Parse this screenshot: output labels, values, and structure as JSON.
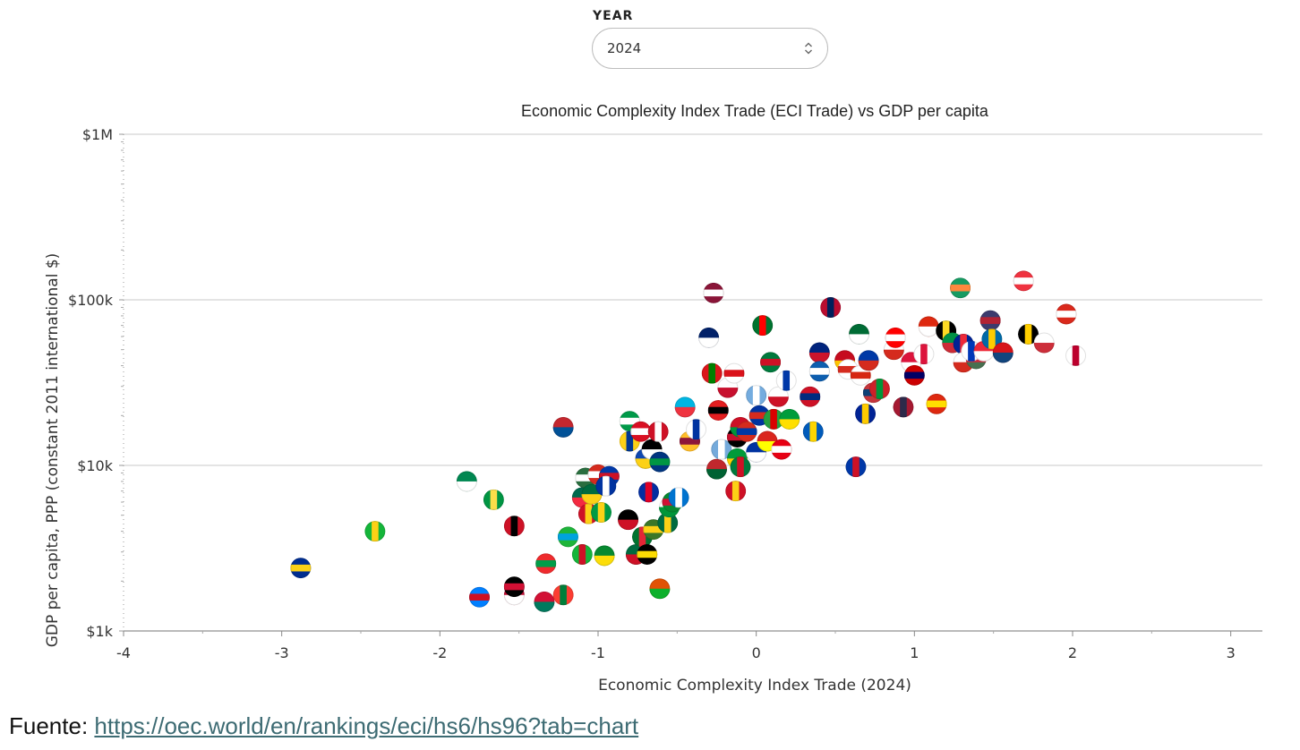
{
  "controls": {
    "year_label": "YEAR",
    "year_value": "2024"
  },
  "footer": {
    "source_label": "Fuente: ",
    "source_url": "https://oec.world/en/rankings/eci/hs6/hs96?tab=chart"
  },
  "chart_data": {
    "type": "scatter",
    "title": "Economic Complexity Index Trade (ECI Trade) vs GDP per capita",
    "xlabel": "Economic Complexity Index Trade (2024)",
    "ylabel": "GDP per capita, PPP (constant 2011 international $)",
    "xlim": [
      -4,
      3.2
    ],
    "ylim": [
      1000,
      1000000
    ],
    "y_scale": "log",
    "x_ticks": [
      -4,
      -3,
      -2,
      -1,
      0,
      1,
      2,
      3
    ],
    "x_tick_labels": [
      "-4",
      "-3",
      "-2",
      "-1",
      "0",
      "1",
      "2",
      "3"
    ],
    "y_ticks": [
      1000,
      10000,
      100000,
      1000000
    ],
    "y_tick_labels": [
      "$1k",
      "$10k",
      "$100k",
      "$1M"
    ],
    "grid": "horizontal",
    "marker": "country flag",
    "points": [
      {
        "x": -2.88,
        "y": 2400,
        "fill": "#002d8f",
        "accent": "#fcd116"
      },
      {
        "x": -2.41,
        "y": 4000,
        "fill": "#14b53a",
        "accent": "#fcd116"
      },
      {
        "x": -1.83,
        "y": 8000,
        "fill": "#008751",
        "accent": "#ffffff"
      },
      {
        "x": -1.75,
        "y": 1600,
        "fill": "#007fff",
        "accent": "#ce1021"
      },
      {
        "x": -1.66,
        "y": 6200,
        "fill": "#009543",
        "accent": "#fbde4a"
      },
      {
        "x": -1.53,
        "y": 1650,
        "fill": "#bf0a30",
        "accent": "#ffffff"
      },
      {
        "x": -1.53,
        "y": 1850,
        "fill": "#000000",
        "accent": "#d21034"
      },
      {
        "x": -1.53,
        "y": 4300,
        "fill": "#ce1126",
        "accent": "#000000"
      },
      {
        "x": -1.34,
        "y": 1500,
        "fill": "#d21034",
        "accent": "#007a5e"
      },
      {
        "x": -1.33,
        "y": 2550,
        "fill": "#ef2b2d",
        "accent": "#009e49"
      },
      {
        "x": -1.22,
        "y": 1650,
        "fill": "#fc3d32",
        "accent": "#007e3a"
      },
      {
        "x": -1.22,
        "y": 17000,
        "fill": "#c4272f",
        "accent": "#015197"
      },
      {
        "x": -1.19,
        "y": 3700,
        "fill": "#1eb53a",
        "accent": "#00a3dd"
      },
      {
        "x": -1.1,
        "y": 2900,
        "fill": "#14b53a",
        "accent": "#ce1126"
      },
      {
        "x": -1.1,
        "y": 6400,
        "fill": "#006a4e",
        "accent": "#f42a41"
      },
      {
        "x": -1.08,
        "y": 8400,
        "fill": "#2a6e3f",
        "accent": "#ffffff"
      },
      {
        "x": -1.06,
        "y": 5100,
        "fill": "#ce1126",
        "accent": "#fcd116"
      },
      {
        "x": -1.04,
        "y": 6700,
        "fill": "#006b3f",
        "accent": "#fcd116"
      },
      {
        "x": -1.0,
        "y": 8800,
        "fill": "#d52b1e",
        "accent": "#ffffff"
      },
      {
        "x": -0.98,
        "y": 5200,
        "fill": "#009a44",
        "accent": "#fcd116"
      },
      {
        "x": -0.96,
        "y": 2850,
        "fill": "#078930",
        "accent": "#fcdd09"
      },
      {
        "x": -0.93,
        "y": 8600,
        "fill": "#0038a8",
        "accent": "#ce1126"
      },
      {
        "x": -0.95,
        "y": 7500,
        "fill": "#0033a0",
        "accent": "#ffffff"
      },
      {
        "x": -0.81,
        "y": 4700,
        "fill": "#000000",
        "accent": "#ce1126"
      },
      {
        "x": -0.8,
        "y": 18500,
        "fill": "#009a49",
        "accent": "#ffffff"
      },
      {
        "x": -0.8,
        "y": 14000,
        "fill": "#fcd116",
        "accent": "#003893"
      },
      {
        "x": -0.76,
        "y": 2900,
        "fill": "#006b3f",
        "accent": "#ce1126"
      },
      {
        "x": -0.73,
        "y": 16000,
        "fill": "#d91023",
        "accent": "#ffffff"
      },
      {
        "x": -0.72,
        "y": 3700,
        "fill": "#00732f",
        "accent": "#e32636"
      },
      {
        "x": -0.7,
        "y": 11000,
        "fill": "#0f47af",
        "accent": "#fcd116"
      },
      {
        "x": -0.69,
        "y": 2900,
        "fill": "#000000",
        "accent": "#fcdc04"
      },
      {
        "x": -0.68,
        "y": 6900,
        "fill": "#032ea1",
        "accent": "#e00025"
      },
      {
        "x": -0.66,
        "y": 12500,
        "fill": "#000000",
        "accent": "#ffffff"
      },
      {
        "x": -0.65,
        "y": 4100,
        "fill": "#3a7728",
        "accent": "#fcd116"
      },
      {
        "x": -0.62,
        "y": 16000,
        "fill": "#ce1126",
        "accent": "#ffffff"
      },
      {
        "x": -0.61,
        "y": 1800,
        "fill": "#e05206",
        "accent": "#0db02b"
      },
      {
        "x": -0.61,
        "y": 10500,
        "fill": "#003580",
        "accent": "#009543"
      },
      {
        "x": -0.56,
        "y": 4500,
        "fill": "#006b3f",
        "accent": "#fcd116"
      },
      {
        "x": -0.55,
        "y": 5600,
        "fill": "#ffffff",
        "accent": "#009639"
      },
      {
        "x": -0.53,
        "y": 6000,
        "fill": "#078930",
        "accent": "#d21034"
      },
      {
        "x": -0.49,
        "y": 6400,
        "fill": "#0073cf",
        "accent": "#ffffff"
      },
      {
        "x": -0.45,
        "y": 22500,
        "fill": "#00b5e2",
        "accent": "#ef3340"
      },
      {
        "x": -0.42,
        "y": 14000,
        "fill": "#ffbe29",
        "accent": "#8d153a"
      },
      {
        "x": -0.38,
        "y": 16500,
        "fill": "#ffffff",
        "accent": "#0033a0"
      },
      {
        "x": -0.3,
        "y": 59000,
        "fill": "#012169",
        "accent": "#ffffff"
      },
      {
        "x": -0.27,
        "y": 110000,
        "fill": "#8a1538",
        "accent": "#ffffff"
      },
      {
        "x": -0.28,
        "y": 36000,
        "fill": "#db161b",
        "accent": "#008000"
      },
      {
        "x": -0.25,
        "y": 9500,
        "fill": "#c1272d",
        "accent": "#006233"
      },
      {
        "x": -0.24,
        "y": 21500,
        "fill": "#e41e20",
        "accent": "#000000"
      },
      {
        "x": -0.22,
        "y": 12500,
        "fill": "#75aadb",
        "accent": "#ffffff"
      },
      {
        "x": -0.18,
        "y": 29500,
        "fill": "#ffffff",
        "accent": "#c8102e"
      },
      {
        "x": -0.14,
        "y": 36000,
        "fill": "#ffffff",
        "accent": "#da121a"
      },
      {
        "x": -0.13,
        "y": 7000,
        "fill": "#ce1126",
        "accent": "#fcd116"
      },
      {
        "x": -0.12,
        "y": 11000,
        "fill": "#009b3a",
        "accent": "#fed100"
      },
      {
        "x": -0.12,
        "y": 14800,
        "fill": "#000000",
        "accent": "#c8102e"
      },
      {
        "x": -0.1,
        "y": 9800,
        "fill": "#007a3d",
        "accent": "#ce1126"
      },
      {
        "x": -0.1,
        "y": 17000,
        "fill": "#ce1126",
        "accent": "#009639"
      },
      {
        "x": -0.06,
        "y": 16000,
        "fill": "#d52b1e",
        "accent": "#0039a6"
      },
      {
        "x": 0.0,
        "y": 26500,
        "fill": "#74acdf",
        "accent": "#ffffff"
      },
      {
        "x": 0.0,
        "y": 12000,
        "fill": "#0033a0",
        "accent": "#ffffff"
      },
      {
        "x": 0.02,
        "y": 20000,
        "fill": "#0033a0",
        "accent": "#d52b1e"
      },
      {
        "x": 0.04,
        "y": 70000,
        "fill": "#00732f",
        "accent": "#ff0000"
      },
      {
        "x": 0.07,
        "y": 14000,
        "fill": "#da251d",
        "accent": "#ffff00"
      },
      {
        "x": 0.09,
        "y": 42000,
        "fill": "#007a3d",
        "accent": "#ce1126"
      },
      {
        "x": 0.11,
        "y": 19000,
        "fill": "#239f40",
        "accent": "#da0000"
      },
      {
        "x": 0.14,
        "y": 26000,
        "fill": "#ffffff",
        "accent": "#ce1126"
      },
      {
        "x": 0.16,
        "y": 12500,
        "fill": "#e70013",
        "accent": "#ffffff"
      },
      {
        "x": 0.19,
        "y": 32500,
        "fill": "#ffffff",
        "accent": "#0038a8"
      },
      {
        "x": 0.21,
        "y": 19000,
        "fill": "#009c3b",
        "accent": "#ffdf00"
      },
      {
        "x": 0.34,
        "y": 26000,
        "fill": "#ce1126",
        "accent": "#002b7f"
      },
      {
        "x": 0.36,
        "y": 16000,
        "fill": "#005bbb",
        "accent": "#ffd500"
      },
      {
        "x": 0.4,
        "y": 48000,
        "fill": "#00247d",
        "accent": "#cc142b"
      },
      {
        "x": 0.4,
        "y": 37000,
        "fill": "#0d5eaf",
        "accent": "#ffffff"
      },
      {
        "x": 0.47,
        "y": 90000,
        "fill": "#ba0c2f",
        "accent": "#00205b"
      },
      {
        "x": 0.56,
        "y": 43000,
        "fill": "#c60b1e",
        "accent": "#ffc400"
      },
      {
        "x": 0.58,
        "y": 38000,
        "fill": "#ffffff",
        "accent": "#d52b1e"
      },
      {
        "x": 0.63,
        "y": 9800,
        "fill": "#0038a8",
        "accent": "#ce1126"
      },
      {
        "x": 0.65,
        "y": 62000,
        "fill": "#006c35",
        "accent": "#ffffff"
      },
      {
        "x": 0.66,
        "y": 35000,
        "fill": "#ffffff",
        "accent": "#d62612"
      },
      {
        "x": 0.69,
        "y": 20500,
        "fill": "#002395",
        "accent": "#fecb00"
      },
      {
        "x": 0.71,
        "y": 43000,
        "fill": "#0039a6",
        "accent": "#d52b1e"
      },
      {
        "x": 0.74,
        "y": 27500,
        "fill": "#c6363c",
        "accent": "#0c4076"
      },
      {
        "x": 0.78,
        "y": 29000,
        "fill": "#ce2028",
        "accent": "#009639"
      },
      {
        "x": 0.87,
        "y": 50000,
        "fill": "#ffffff",
        "accent": "#d52b1e"
      },
      {
        "x": 0.88,
        "y": 59000,
        "fill": "#ff0000",
        "accent": "#ffffff"
      },
      {
        "x": 0.93,
        "y": 22500,
        "fill": "#a51931",
        "accent": "#2d2a4a"
      },
      {
        "x": 0.98,
        "y": 42000,
        "fill": "#dc143c",
        "accent": "#ffffff"
      },
      {
        "x": 1.0,
        "y": 35000,
        "fill": "#cc0001",
        "accent": "#010066"
      },
      {
        "x": 1.06,
        "y": 47000,
        "fill": "#ffffff",
        "accent": "#dc143c"
      },
      {
        "x": 1.09,
        "y": 69000,
        "fill": "#de2910",
        "accent": "#ffffff"
      },
      {
        "x": 1.14,
        "y": 23500,
        "fill": "#de2910",
        "accent": "#ffde00"
      },
      {
        "x": 1.2,
        "y": 65000,
        "fill": "#000000",
        "accent": "#fdda24"
      },
      {
        "x": 1.24,
        "y": 55000,
        "fill": "#009246",
        "accent": "#ce2b37"
      },
      {
        "x": 1.29,
        "y": 118000,
        "fill": "#169b62",
        "accent": "#ff883e"
      },
      {
        "x": 1.31,
        "y": 54000,
        "fill": "#002395",
        "accent": "#ed2939"
      },
      {
        "x": 1.31,
        "y": 42000,
        "fill": "#ffffff",
        "accent": "#d52b1e"
      },
      {
        "x": 1.39,
        "y": 44000,
        "fill": "#477050",
        "accent": "#cd2a3e"
      },
      {
        "x": 1.36,
        "y": 49000,
        "fill": "#ffffff",
        "accent": "#0038b8"
      },
      {
        "x": 1.44,
        "y": 49000,
        "fill": "#ed2939",
        "accent": "#ffffff"
      },
      {
        "x": 1.48,
        "y": 75000,
        "fill": "#3c3b6e",
        "accent": "#b22234"
      },
      {
        "x": 1.49,
        "y": 58000,
        "fill": "#006aa7",
        "accent": "#fecc00"
      },
      {
        "x": 1.56,
        "y": 48000,
        "fill": "#d7141a",
        "accent": "#11457e"
      },
      {
        "x": 1.69,
        "y": 130000,
        "fill": "#ef3340",
        "accent": "#ffffff"
      },
      {
        "x": 1.72,
        "y": 62000,
        "fill": "#000000",
        "accent": "#ffce00"
      },
      {
        "x": 1.82,
        "y": 55000,
        "fill": "#ffffff",
        "accent": "#cd2e3a"
      },
      {
        "x": 1.96,
        "y": 82000,
        "fill": "#da291c",
        "accent": "#ffffff"
      },
      {
        "x": 2.02,
        "y": 46000,
        "fill": "#ffffff",
        "accent": "#bc002d"
      }
    ]
  }
}
